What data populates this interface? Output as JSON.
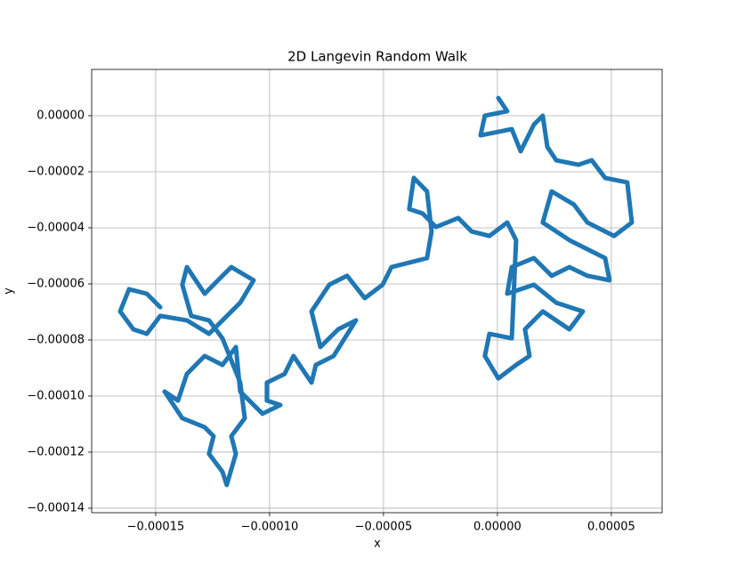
{
  "chart_data": {
    "type": "line",
    "title": "2D Langevin Random Walk",
    "x_label": "x",
    "y_label": "y",
    "color": "#1f77b4",
    "grid": true,
    "xlim": [
      -0.0001781,
      7.23e-05
    ],
    "ylim": [
      -0.0001416,
      1.65e-05
    ],
    "xticks": [
      {
        "value": -0.00015,
        "label": "−0.00015"
      },
      {
        "value": -0.0001,
        "label": "−0.00010"
      },
      {
        "value": -5e-05,
        "label": "−0.00005"
      },
      {
        "value": 0,
        "label": "0.00000"
      },
      {
        "value": 5e-05,
        "label": "0.00005"
      }
    ],
    "yticks": [
      {
        "value": 0,
        "label": "0.00000"
      },
      {
        "value": -2e-05,
        "label": "−0.00002"
      },
      {
        "value": -4e-05,
        "label": "−0.00004"
      },
      {
        "value": -6e-05,
        "label": "−0.00006"
      },
      {
        "value": -8e-05,
        "label": "−0.00008"
      },
      {
        "value": -0.0001,
        "label": "−0.00010"
      },
      {
        "value": -0.00012,
        "label": "−0.00012"
      },
      {
        "value": -0.00014,
        "label": "−0.00014"
      }
    ],
    "x": [
      4e-07,
      4.3e-06,
      -5.5e-06,
      -7.4e-06,
      6.3e-06,
      1.02e-05,
      1.6e-05,
      1.99e-05,
      2.19e-05,
      2.58e-05,
      3.55e-05,
      4.14e-05,
      4.73e-05,
      5.7e-05,
      5.9e-05,
      5.12e-05,
      3.95e-05,
      3.36e-05,
      2.38e-05,
      1.99e-05,
      3.16e-05,
      4.73e-05,
      4.92e-05,
      3.95e-05,
      3.16e-05,
      2.38e-05,
      1.6e-05,
      6.3e-06,
      4.3e-06,
      1.6e-05,
      2.58e-05,
      3.75e-05,
      3.16e-05,
      1.99e-05,
      1.21e-05,
      1.41e-05,
      8.2e-06,
      4e-07,
      -5.5e-06,
      -3.5e-06,
      6.3e-06,
      8.2e-06,
      4.3e-06,
      -3.5e-06,
      -1.13e-05,
      -1.72e-05,
      -2.7e-05,
      -3.28e-05,
      -3.87e-05,
      -3.67e-05,
      -3.09e-05,
      -2.89e-05,
      -3.09e-05,
      -3.87e-05,
      -4.65e-05,
      -5.04e-05,
      -5.82e-05,
      -6.6e-05,
      -7.38e-05,
      -8.16e-05,
      -7.77e-05,
      -6.99e-05,
      -6.21e-05,
      -7.19e-05,
      -7.97e-05,
      -8.16e-05,
      -8.95e-05,
      -9.34e-05,
      -0.0001012,
      -0.0001012,
      -9.53e-05,
      -0.0001031,
      -0.0001129,
      -0.0001148,
      -0.0001207,
      -0.0001285,
      -0.0001363,
      -0.0001402,
      -0.0001461,
      -0.0001383,
      -0.0001285,
      -0.0001246,
      -0.0001266,
      -0.0001207,
      -0.0001188,
      -0.0001148,
      -0.0001168,
      -0.0001109,
      -0.0001129,
      -0.0001207,
      -0.0001266,
      -0.0001344,
      -0.0001383,
      -0.0001363,
      -0.0001285,
      -0.0001207,
      -0.0001168,
      -0.000107,
      -0.0001129,
      -0.0001266,
      -0.0001363,
      -0.000148,
      -0.0001539,
      -0.0001598,
      -0.0001656,
      -0.0001617,
      -0.0001539,
      -0.000148
    ],
    "values": [
      6.3e-06,
      1.6e-06,
      0,
      -7e-06,
      -4.8e-06,
      -1.27e-05,
      -3.2e-06,
      0,
      -1.11e-05,
      -1.59e-05,
      -1.75e-05,
      -1.59e-05,
      -2.22e-05,
      -2.38e-05,
      -3.81e-05,
      -4.29e-05,
      -3.81e-05,
      -3.17e-05,
      -2.7e-05,
      -3.81e-05,
      -4.44e-05,
      -5.08e-05,
      -5.87e-05,
      -5.71e-05,
      -5.4e-05,
      -5.71e-05,
      -5.08e-05,
      -5.4e-05,
      -6.35e-05,
      -6.03e-05,
      -6.67e-05,
      -6.98e-05,
      -7.62e-05,
      -6.98e-05,
      -7.62e-05,
      -8.57e-05,
      -8.89e-05,
      -9.37e-05,
      -8.57e-05,
      -7.78e-05,
      -7.94e-05,
      -4.44e-05,
      -3.81e-05,
      -4.29e-05,
      -4.13e-05,
      -3.65e-05,
      -3.97e-05,
      -3.49e-05,
      -3.33e-05,
      -2.22e-05,
      -2.7e-05,
      -4.13e-05,
      -5.08e-05,
      -5.24e-05,
      -5.4e-05,
      -6.03e-05,
      -6.51e-05,
      -5.71e-05,
      -6.03e-05,
      -6.98e-05,
      -8.25e-05,
      -7.62e-05,
      -7.3e-05,
      -8.57e-05,
      -8.89e-05,
      -9.52e-05,
      -8.57e-05,
      -9.21e-05,
      -9.52e-05,
      -0.0001016,
      -0.0001032,
      -0.0001063,
      -9.84e-05,
      -8.25e-05,
      -8.89e-05,
      -8.57e-05,
      -9.21e-05,
      -0.0001016,
      -9.84e-05,
      -0.0001079,
      -0.0001111,
      -0.0001143,
      -0.0001206,
      -0.000127,
      -0.0001317,
      -0.0001206,
      -0.0001143,
      -0.0001079,
      -9.52e-05,
      -7.94e-05,
      -7.3e-05,
      -7.14e-05,
      -6.03e-05,
      -5.4e-05,
      -6.35e-05,
      -5.71e-05,
      -5.4e-05,
      -5.87e-05,
      -6.67e-05,
      -7.78e-05,
      -7.3e-05,
      -7.14e-05,
      -7.78e-05,
      -7.62e-05,
      -6.98e-05,
      -6.19e-05,
      -6.35e-05,
      -6.83e-05
    ]
  }
}
